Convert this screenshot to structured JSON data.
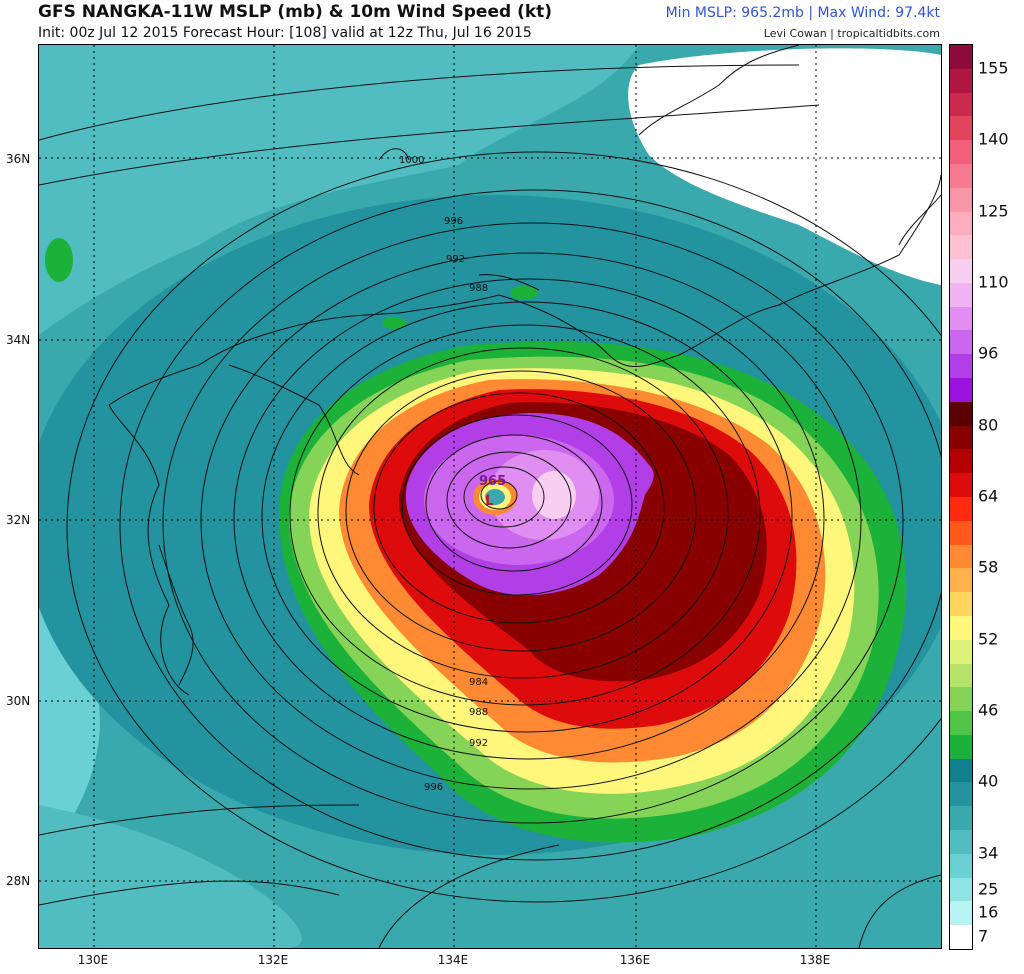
{
  "header": {
    "title": "GFS NANGKA-11W MSLP (mb) & 10m Wind Speed (kt)",
    "subtitle": "Init: 00z Jul 12 2015   Forecast Hour: [108]   valid at 12z Thu, Jul 16 2015",
    "stats": "Min MSLP: 965.2mb | Max Wind: 97.4kt",
    "credit": "Levi Cowan | tropicaltidbits.com"
  },
  "map": {
    "lat_labels": [
      "36N",
      "34N",
      "32N",
      "30N",
      "28N"
    ],
    "lon_labels": [
      "130E",
      "132E",
      "134E",
      "136E",
      "138E"
    ],
    "center_label": "965",
    "low_marker": "L",
    "isobar_labels": [
      "1000",
      "996",
      "992",
      "988",
      "984",
      "988",
      "992",
      "996"
    ]
  },
  "colorbar": {
    "labels": [
      "155",
      "140",
      "125",
      "110",
      "96",
      "80",
      "64",
      "58",
      "52",
      "46",
      "40",
      "34",
      "25",
      "16",
      "7"
    ],
    "colors": [
      "#8c0b3a",
      "#b01641",
      "#cc2a4c",
      "#e2445b",
      "#f0607a",
      "#f67b90",
      "#f995a8",
      "#fcadbf",
      "#fdc1d2",
      "#f8cff0",
      "#f0b4f4",
      "#e08ef1",
      "#cb67ee",
      "#b23ee8",
      "#9b12e0",
      "#5a0000",
      "#880000",
      "#b30000",
      "#dd0b0b",
      "#ff2a10",
      "#ff5a1c",
      "#ff8a33",
      "#ffb14b",
      "#ffd55e",
      "#fff67c",
      "#dff27a",
      "#b6e46a",
      "#85d458",
      "#4fc446",
      "#1cb138",
      "#117f8e",
      "#23939f",
      "#3aa9ae",
      "#51bdc1",
      "#6bd0d3",
      "#8ee3e4",
      "#b7f3f3",
      "#ffffff"
    ]
  }
}
